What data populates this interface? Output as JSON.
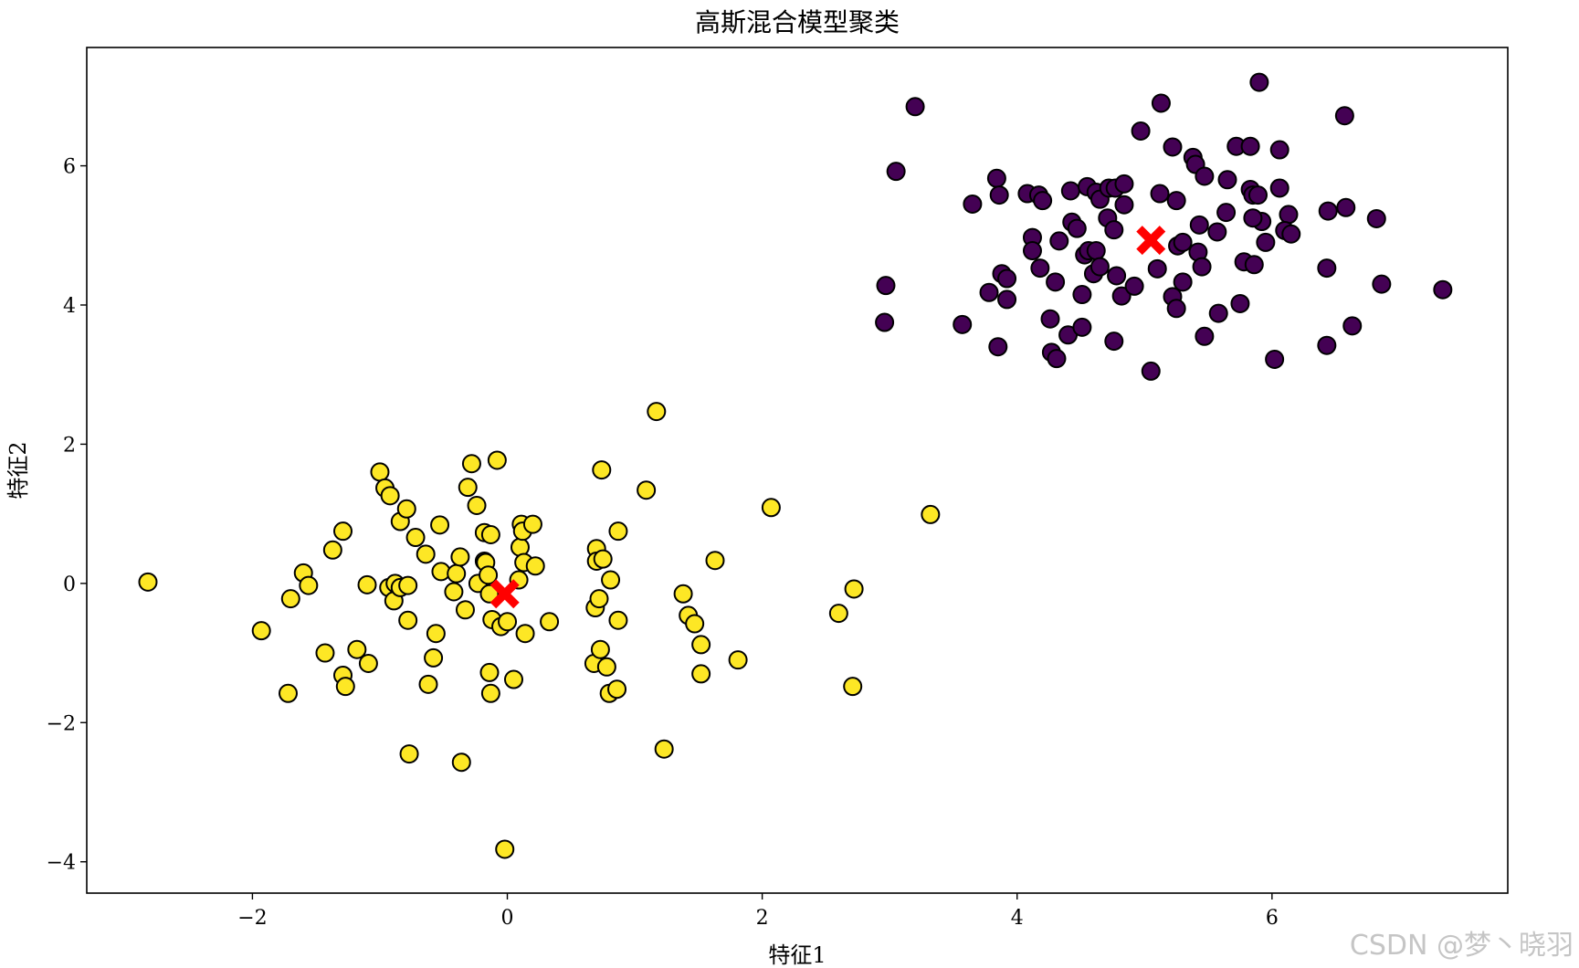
{
  "watermark": "CSDN @梦丶晓羽",
  "chart_data": {
    "type": "scatter",
    "title": "高斯混合模型聚类",
    "xlabel": "特征1",
    "ylabel": "特征2",
    "xlim": [
      -3.3,
      7.85
    ],
    "ylim": [
      -4.45,
      7.7
    ],
    "xticks": [
      -2,
      0,
      2,
      4,
      6
    ],
    "yticks": [
      -4,
      -2,
      0,
      2,
      4,
      6
    ],
    "xtick_labels": [
      "−2",
      "0",
      "2",
      "4",
      "6"
    ],
    "ytick_labels": [
      "−4",
      "−2",
      "0",
      "2",
      "4",
      "6"
    ],
    "colors": {
      "cluster_0": "#440154",
      "cluster_1": "#fde725",
      "centers": "#ff0000",
      "edge": "#000000"
    },
    "series": [
      {
        "name": "cluster_0",
        "points": [
          [
            3.2,
            6.85
          ],
          [
            3.05,
            5.92
          ],
          [
            2.97,
            4.28
          ],
          [
            2.96,
            3.75
          ],
          [
            3.57,
            3.72
          ],
          [
            3.84,
            5.82
          ],
          [
            3.65,
            5.45
          ],
          [
            3.86,
            5.58
          ],
          [
            3.78,
            4.18
          ],
          [
            3.88,
            4.45
          ],
          [
            3.92,
            4.38
          ],
          [
            3.92,
            4.08
          ],
          [
            3.85,
            3.4
          ],
          [
            4.08,
            5.6
          ],
          [
            4.17,
            5.58
          ],
          [
            4.2,
            5.5
          ],
          [
            4.12,
            4.97
          ],
          [
            4.12,
            4.78
          ],
          [
            4.18,
            4.53
          ],
          [
            4.3,
            4.33
          ],
          [
            4.33,
            4.92
          ],
          [
            4.26,
            3.8
          ],
          [
            4.27,
            3.32
          ],
          [
            4.31,
            3.23
          ],
          [
            4.4,
            3.57
          ],
          [
            4.51,
            3.68
          ],
          [
            4.51,
            4.15
          ],
          [
            4.42,
            5.64
          ],
          [
            4.43,
            5.19
          ],
          [
            4.47,
            5.1
          ],
          [
            4.55,
            5.7
          ],
          [
            4.62,
            5.62
          ],
          [
            4.65,
            5.52
          ],
          [
            4.72,
            5.68
          ],
          [
            4.77,
            5.68
          ],
          [
            4.84,
            5.74
          ],
          [
            4.84,
            5.44
          ],
          [
            4.71,
            5.25
          ],
          [
            4.76,
            5.08
          ],
          [
            4.53,
            4.72
          ],
          [
            4.56,
            4.78
          ],
          [
            4.62,
            4.78
          ],
          [
            4.6,
            4.45
          ],
          [
            4.65,
            4.55
          ],
          [
            4.78,
            4.42
          ],
          [
            4.82,
            4.13
          ],
          [
            4.92,
            4.27
          ],
          [
            4.76,
            3.48
          ],
          [
            4.97,
            6.5
          ],
          [
            5.13,
            6.9
          ],
          [
            5.12,
            5.6
          ],
          [
            5.22,
            6.27
          ],
          [
            5.25,
            5.5
          ],
          [
            5.38,
            6.12
          ],
          [
            5.4,
            6.02
          ],
          [
            5.47,
            5.85
          ],
          [
            5.26,
            4.85
          ],
          [
            5.3,
            4.9
          ],
          [
            5.43,
            5.15
          ],
          [
            5.42,
            4.76
          ],
          [
            5.45,
            4.55
          ],
          [
            5.3,
            4.33
          ],
          [
            5.1,
            4.52
          ],
          [
            5.22,
            4.12
          ],
          [
            5.25,
            3.95
          ],
          [
            5.47,
            3.55
          ],
          [
            5.58,
            3.88
          ],
          [
            5.57,
            5.05
          ],
          [
            5.64,
            5.33
          ],
          [
            5.65,
            5.8
          ],
          [
            5.72,
            6.28
          ],
          [
            5.83,
            6.28
          ],
          [
            5.83,
            5.66
          ],
          [
            5.85,
            5.58
          ],
          [
            5.89,
            5.58
          ],
          [
            5.92,
            5.2
          ],
          [
            5.85,
            5.25
          ],
          [
            5.95,
            4.9
          ],
          [
            5.78,
            4.62
          ],
          [
            5.86,
            4.58
          ],
          [
            5.75,
            4.02
          ],
          [
            5.05,
            3.05
          ],
          [
            5.9,
            7.2
          ],
          [
            6.06,
            6.23
          ],
          [
            6.06,
            5.68
          ],
          [
            6.13,
            5.3
          ],
          [
            6.1,
            5.07
          ],
          [
            6.15,
            5.02
          ],
          [
            6.02,
            3.22
          ],
          [
            6.44,
            5.35
          ],
          [
            6.58,
            5.4
          ],
          [
            6.57,
            6.72
          ],
          [
            6.43,
            4.53
          ],
          [
            6.43,
            3.42
          ],
          [
            6.63,
            3.7
          ],
          [
            6.82,
            5.24
          ],
          [
            6.86,
            4.3
          ],
          [
            7.34,
            4.22
          ]
        ]
      },
      {
        "name": "cluster_1",
        "points": [
          [
            -2.82,
            0.02
          ],
          [
            -1.93,
            -0.68
          ],
          [
            -1.72,
            -1.58
          ],
          [
            -1.7,
            -0.22
          ],
          [
            -1.6,
            0.15
          ],
          [
            -1.56,
            -0.03
          ],
          [
            -1.43,
            -1.0
          ],
          [
            -1.37,
            0.48
          ],
          [
            -1.29,
            0.75
          ],
          [
            -1.29,
            -1.32
          ],
          [
            -1.27,
            -1.48
          ],
          [
            -1.18,
            -0.95
          ],
          [
            -1.1,
            -0.02
          ],
          [
            -1.09,
            -1.15
          ],
          [
            -1.0,
            1.6
          ],
          [
            -0.96,
            1.37
          ],
          [
            -0.92,
            1.26
          ],
          [
            -0.93,
            -0.06
          ],
          [
            -0.88,
            -0.0
          ],
          [
            -0.89,
            -0.25
          ],
          [
            -0.84,
            0.89
          ],
          [
            -0.84,
            -0.06
          ],
          [
            -0.79,
            1.07
          ],
          [
            -0.78,
            -0.03
          ],
          [
            -0.78,
            -0.53
          ],
          [
            -0.77,
            -2.45
          ],
          [
            -0.72,
            0.66
          ],
          [
            -0.64,
            0.42
          ],
          [
            -0.62,
            -1.45
          ],
          [
            -0.58,
            -1.07
          ],
          [
            -0.56,
            -0.72
          ],
          [
            -0.53,
            0.84
          ],
          [
            -0.52,
            0.17
          ],
          [
            -0.42,
            -0.12
          ],
          [
            -0.4,
            0.14
          ],
          [
            -0.37,
            0.38
          ],
          [
            -0.36,
            -2.57
          ],
          [
            -0.33,
            -0.38
          ],
          [
            -0.31,
            1.38
          ],
          [
            -0.28,
            1.72
          ],
          [
            -0.24,
            1.12
          ],
          [
            -0.23,
            0.0
          ],
          [
            -0.18,
            0.73
          ],
          [
            -0.18,
            0.32
          ],
          [
            -0.17,
            0.3
          ],
          [
            -0.15,
            0.12
          ],
          [
            -0.14,
            -0.15
          ],
          [
            -0.13,
            0.7
          ],
          [
            -0.14,
            -1.28
          ],
          [
            -0.13,
            -1.58
          ],
          [
            -0.12,
            -0.52
          ],
          [
            -0.08,
            1.77
          ],
          [
            -0.05,
            -0.62
          ],
          [
            -0.02,
            -3.82
          ],
          [
            0.0,
            -0.55
          ],
          [
            0.05,
            -1.38
          ],
          [
            0.09,
            0.05
          ],
          [
            0.1,
            0.52
          ],
          [
            0.11,
            0.85
          ],
          [
            0.12,
            0.75
          ],
          [
            0.14,
            -0.72
          ],
          [
            0.13,
            0.3
          ],
          [
            0.2,
            0.85
          ],
          [
            0.22,
            0.25
          ],
          [
            0.33,
            -0.55
          ],
          [
            0.68,
            -1.15
          ],
          [
            0.69,
            -0.35
          ],
          [
            0.7,
            0.5
          ],
          [
            0.7,
            0.32
          ],
          [
            0.72,
            -0.22
          ],
          [
            0.73,
            -0.95
          ],
          [
            0.74,
            1.63
          ],
          [
            0.75,
            0.35
          ],
          [
            0.78,
            -1.2
          ],
          [
            0.81,
            0.05
          ],
          [
            0.8,
            -1.58
          ],
          [
            0.86,
            -1.52
          ],
          [
            0.87,
            -0.53
          ],
          [
            0.87,
            0.75
          ],
          [
            1.09,
            1.34
          ],
          [
            1.17,
            2.47
          ],
          [
            1.23,
            -2.38
          ],
          [
            1.38,
            -0.15
          ],
          [
            1.42,
            -0.46
          ],
          [
            1.47,
            -0.58
          ],
          [
            1.52,
            -0.88
          ],
          [
            1.52,
            -1.3
          ],
          [
            1.63,
            0.33
          ],
          [
            1.81,
            -1.1
          ],
          [
            2.07,
            1.09
          ],
          [
            2.6,
            -0.43
          ],
          [
            2.72,
            -0.08
          ],
          [
            2.71,
            -1.48
          ],
          [
            3.32,
            0.99
          ]
        ]
      },
      {
        "name": "centers",
        "points": [
          [
            5.05,
            4.93
          ],
          [
            -0.02,
            -0.15
          ]
        ]
      }
    ]
  }
}
